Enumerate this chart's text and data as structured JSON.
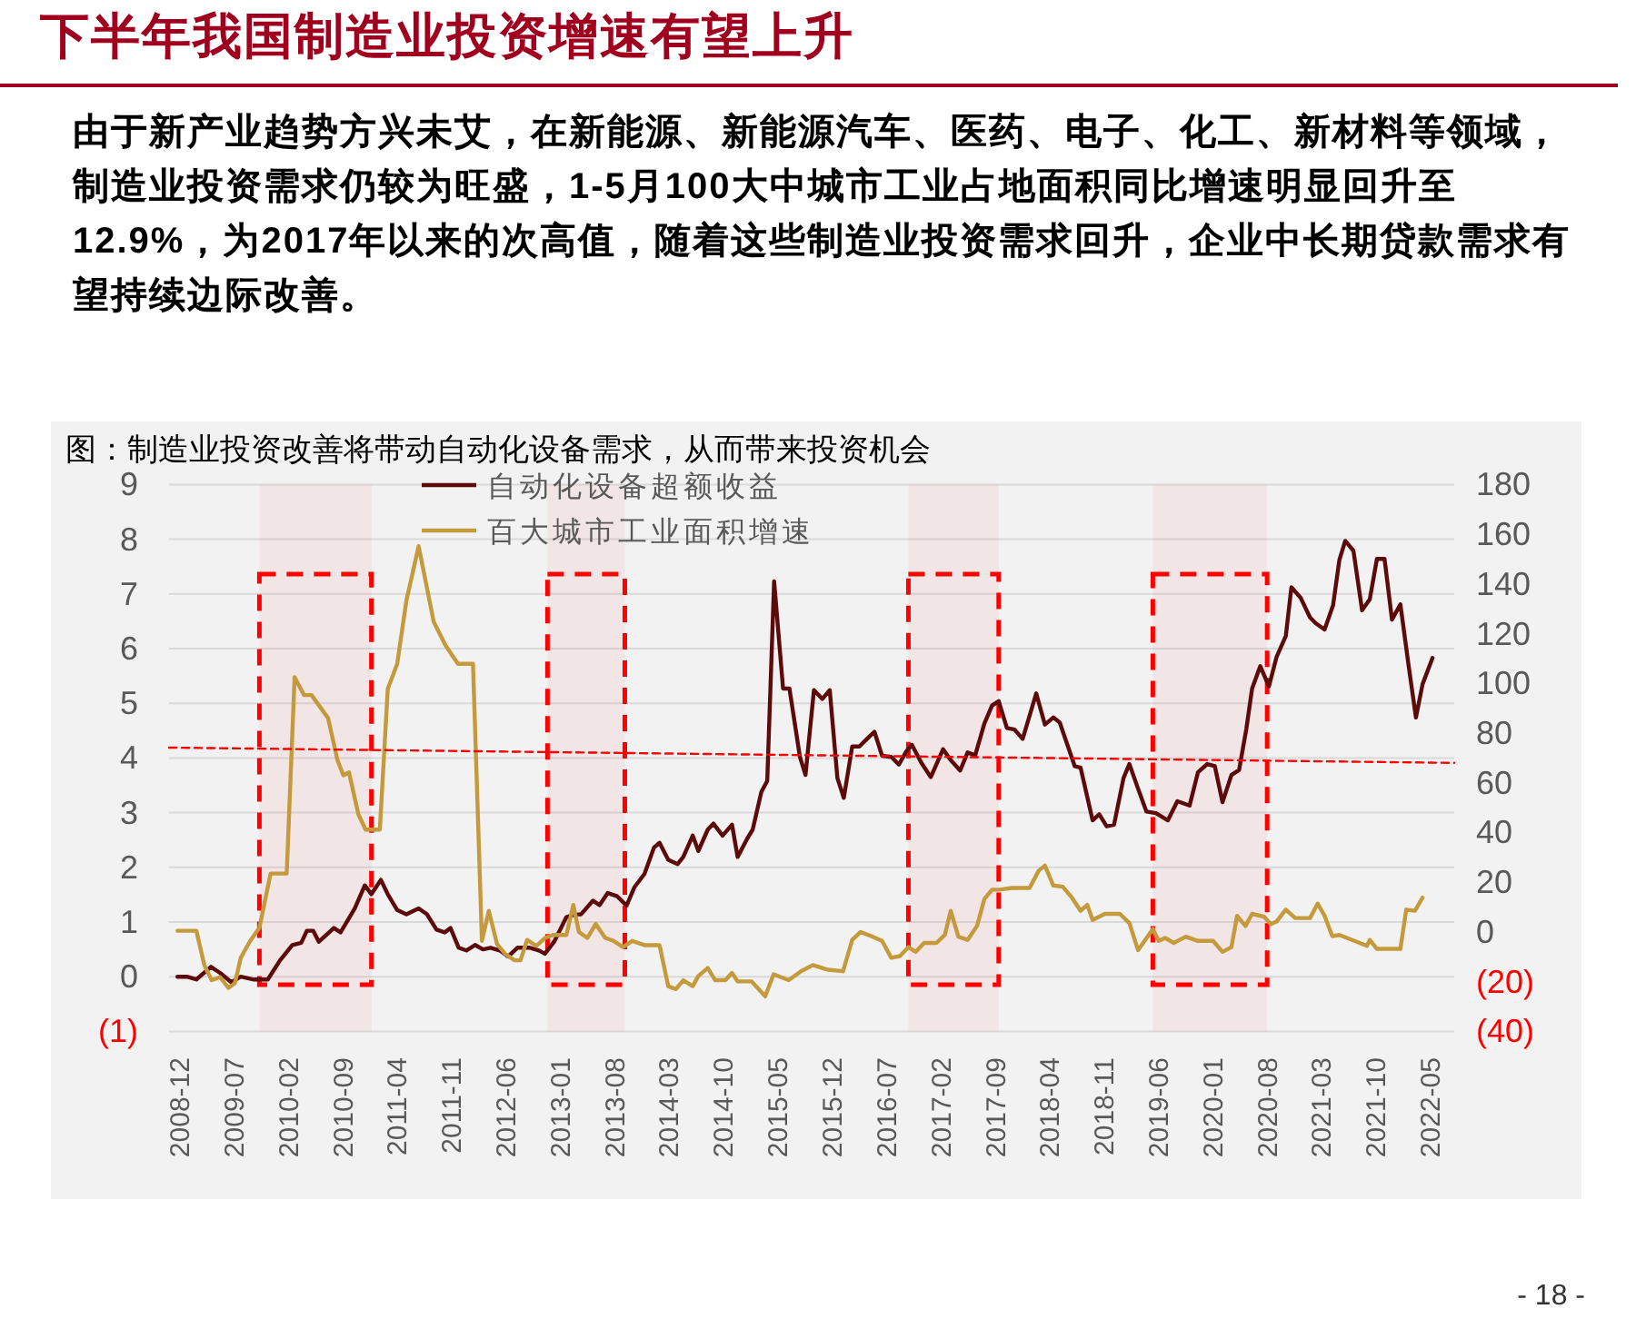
{
  "chart_data": {
    "type": "line",
    "title": "下半年我国制造业投资增速有望上升",
    "subtitle": "由于新产业趋势方兴未艾，在新能源、新能源汽车、医药、电子、化工、新材料等领域，制造业投资需求仍较为旺盛，1-5月100大中城市工业占地面积同比增速明显回升至12.9%，为2017年以来的次高值，随着这些制造业投资需求回升，企业中长期贷款需求有望持续边际改善。",
    "annotations": [
      "图：制造业投资改善将带动自动化设备需求，从而带来投资机会",
      "- 18 -"
    ],
    "xlim": [
      "2008-10-30",
      "2022-08-14"
    ],
    "xticks": [
      "2008-12",
      "2009-07",
      "2010-02",
      "2010-09",
      "2011-04",
      "2011-11",
      "2012-06",
      "2013-01",
      "2013-08",
      "2014-03",
      "2014-10",
      "2015-05",
      "2015-12",
      "2016-07",
      "2017-02",
      "2017-09",
      "2018-04",
      "2018-11",
      "2019-06",
      "2020-01",
      "2020-08",
      "2021-03",
      "2021-10",
      "2022-05"
    ],
    "ylim": [
      -1,
      9
    ],
    "yticks": [
      {
        "value": -1,
        "label": "(1)"
      },
      0,
      1,
      2,
      3,
      4,
      5,
      6,
      7,
      8,
      9
    ],
    "y2lim": [
      -40,
      180
    ],
    "y2ticks": [
      {
        "value": -40,
        "label": "(40)"
      },
      {
        "value": -20,
        "label": "(20)"
      },
      0,
      20,
      40,
      60,
      80,
      100,
      120,
      140,
      160,
      180
    ],
    "grid": "y",
    "legend": "top",
    "series": [
      {
        "name": "自动化设备超额收益",
        "color": "#5c0a0a",
        "x": [
          "2008-12-02",
          "2009-01-08",
          "2009-02-14",
          "2009-04-12",
          "2009-05-18",
          "2009-07-01",
          "2009-08-07",
          "2009-09-24",
          "2009-11-21",
          "2010-01-08",
          "2010-02-25",
          "2010-04-01",
          "2010-04-23",
          "2010-05-18",
          "2010-06-09",
          "2010-08-07",
          "2010-09-02",
          "2010-10-28",
          "2010-12-06",
          "2011-01-01",
          "2011-02-07",
          "2011-03-06",
          "2011-04-12",
          "2011-05-18",
          "2011-07-05",
          "2011-08-07",
          "2011-09-13",
          "2011-10-15",
          "2011-11-07",
          "2011-12-09",
          "2012-01-08",
          "2012-02-11",
          "2012-03-13",
          "2012-04-12",
          "2012-05-18",
          "2012-06-20",
          "2012-07-26",
          "2012-09-13",
          "2012-10-19",
          "2012-11-11",
          "2012-12-17",
          "2013-02-03",
          "2013-03-09",
          "2013-04-01",
          "2013-05-18",
          "2013-06-13",
          "2013-07-15",
          "2013-08-21",
          "2013-09-27",
          "2013-10-28",
          "2013-12-06",
          "2014-01-12",
          "2014-02-03",
          "2014-03-09",
          "2014-04-15",
          "2014-05-07",
          "2014-06-13",
          "2014-07-05",
          "2014-08-11",
          "2014-09-02",
          "2014-10-08",
          "2014-11-14",
          "2014-12-06",
          "2015-01-12",
          "2015-02-03",
          "2015-03-09",
          "2015-04-01",
          "2015-04-28",
          "2015-06-02",
          "2015-06-27",
          "2015-08-07",
          "2015-08-29",
          "2015-10-01",
          "2015-11-03",
          "2015-12-02",
          "2016-01-01",
          "2016-01-26",
          "2016-02-28",
          "2016-03-27",
          "2016-04-26",
          "2016-05-25",
          "2016-06-24",
          "2016-07-30",
          "2016-08-29",
          "2016-09-27",
          "2016-10-19",
          "2016-11-25",
          "2017-01-01",
          "2017-02-18",
          "2017-03-20",
          "2017-04-26",
          "2017-05-25",
          "2017-06-24",
          "2017-07-30",
          "2017-08-29",
          "2017-09-24",
          "2017-10-26",
          "2017-11-25",
          "2017-12-27",
          "2018-02-18",
          "2018-03-24",
          "2018-04-26",
          "2018-05-21",
          "2018-07-19",
          "2018-08-11",
          "2018-09-27",
          "2018-10-23",
          "2018-11-21",
          "2018-12-20",
          "2019-01-26",
          "2019-02-18",
          "2019-03-24",
          "2019-04-26",
          "2019-06-02",
          "2019-07-19",
          "2019-08-25",
          "2019-10-12",
          "2019-11-14",
          "2019-12-20",
          "2020-01-19",
          "2020-02-18",
          "2020-03-24",
          "2020-04-23",
          "2020-05-21",
          "2020-06-13",
          "2020-07-15",
          "2020-08-18",
          "2020-09-17",
          "2020-10-23",
          "2020-11-14",
          "2020-12-20",
          "2021-01-26",
          "2021-02-18",
          "2021-03-24",
          "2021-04-26",
          "2021-05-21",
          "2021-06-13",
          "2021-07-15",
          "2021-08-18",
          "2021-09-17",
          "2021-10-15",
          "2021-11-14",
          "2021-12-13",
          "2022-01-15",
          "2022-02-18",
          "2022-03-17",
          "2022-04-12",
          "2022-05-21"
        ],
        "values": [
          0.0,
          0.0,
          -0.05,
          0.18,
          0.07,
          -0.1,
          0.0,
          -0.05,
          -0.05,
          0.3,
          0.58,
          0.62,
          0.84,
          0.84,
          0.64,
          0.89,
          0.81,
          1.25,
          1.67,
          1.51,
          1.77,
          1.51,
          1.22,
          1.14,
          1.25,
          1.14,
          0.86,
          0.81,
          0.89,
          0.53,
          0.48,
          0.58,
          0.5,
          0.53,
          0.48,
          0.37,
          0.53,
          0.53,
          0.48,
          0.42,
          0.64,
          1.09,
          1.14,
          1.14,
          1.39,
          1.31,
          1.53,
          1.47,
          1.3,
          1.64,
          1.88,
          2.36,
          2.45,
          2.14,
          2.06,
          2.19,
          2.58,
          2.3,
          2.69,
          2.8,
          2.58,
          2.78,
          2.19,
          2.52,
          2.69,
          3.38,
          3.58,
          7.23,
          5.27,
          5.27,
          4.02,
          3.69,
          5.24,
          5.08,
          5.24,
          3.63,
          3.27,
          4.21,
          4.21,
          4.35,
          4.48,
          4.04,
          4.02,
          3.88,
          4.12,
          4.24,
          3.91,
          3.65,
          4.16,
          3.96,
          3.77,
          4.1,
          4.05,
          4.63,
          4.96,
          5.04,
          4.55,
          4.52,
          4.35,
          5.18,
          4.61,
          4.74,
          4.65,
          3.85,
          3.82,
          2.86,
          2.97,
          2.75,
          2.78,
          3.63,
          3.89,
          3.44,
          3.02,
          2.99,
          2.86,
          3.21,
          3.13,
          3.74,
          3.89,
          3.85,
          3.19,
          3.69,
          3.78,
          4.52,
          5.27,
          5.68,
          5.31,
          5.85,
          6.23,
          7.12,
          6.93,
          6.57,
          6.46,
          6.35,
          6.79,
          7.62,
          7.97,
          7.79,
          6.7,
          6.9,
          7.64,
          7.64,
          6.53,
          6.81,
          5.63,
          4.74,
          5.35,
          5.83
        ]
      },
      {
        "name": "百大城市工业面积增速",
        "color": "#c49a3c",
        "axis": "y2",
        "x": [
          "2008-12-02",
          "2009-02-14",
          "2009-03-17",
          "2009-04-15",
          "2009-05-18",
          "2009-06-20",
          "2009-07-15",
          "2009-08-07",
          "2009-09-13",
          "2009-10-19",
          "2009-12-02",
          "2010-02-03",
          "2010-03-06",
          "2010-04-12",
          "2010-05-11",
          "2010-07-15",
          "2010-08-21",
          "2010-09-13",
          "2010-10-05",
          "2010-11-11",
          "2010-12-09",
          "2011-02-03",
          "2011-03-06",
          "2011-04-12",
          "2011-05-18",
          "2011-07-05",
          "2011-09-02",
          "2011-10-19",
          "2011-12-06",
          "2012-02-03",
          "2012-03-09",
          "2012-04-05",
          "2012-05-07",
          "2012-06-09",
          "2012-07-15",
          "2012-08-07",
          "2012-09-02",
          "2012-10-08",
          "2012-11-11",
          "2012-12-13",
          "2013-02-03",
          "2013-03-02",
          "2013-03-24",
          "2013-04-26",
          "2013-05-29",
          "2013-07-05",
          "2013-08-07",
          "2013-09-13",
          "2013-10-19",
          "2013-12-06",
          "2014-02-03",
          "2014-03-09",
          "2014-04-08",
          "2014-05-07",
          "2014-06-13",
          "2014-07-05",
          "2014-08-11",
          "2014-09-09",
          "2014-10-19",
          "2014-11-14",
          "2014-12-06",
          "2015-01-30",
          "2015-03-24",
          "2015-04-26",
          "2015-06-24",
          "2015-08-11",
          "2015-09-27",
          "2015-11-25",
          "2016-01-23",
          "2016-02-28",
          "2016-04-01",
          "2016-05-18",
          "2016-06-24",
          "2016-07-30",
          "2016-09-02",
          "2016-10-05",
          "2016-11-03",
          "2016-12-06",
          "2017-01-23",
          "2017-02-25",
          "2017-03-20",
          "2017-04-19",
          "2017-05-25",
          "2017-07-01",
          "2017-07-30",
          "2017-08-29",
          "2017-09-27",
          "2017-11-14",
          "2018-01-23",
          "2018-02-28",
          "2018-03-24",
          "2018-04-26",
          "2018-06-02",
          "2018-07-08",
          "2018-08-11",
          "2018-09-06",
          "2018-09-27",
          "2018-11-14",
          "2019-01-12",
          "2019-02-18",
          "2019-03-24",
          "2019-05-21",
          "2019-06-13",
          "2019-07-08",
          "2019-08-11",
          "2019-09-27",
          "2019-11-14",
          "2020-01-12",
          "2020-02-18",
          "2020-03-24",
          "2020-04-15",
          "2020-05-18",
          "2020-06-13",
          "2020-07-30",
          "2020-08-25",
          "2020-09-17",
          "2020-10-23",
          "2020-11-29",
          "2021-01-26",
          "2021-02-25",
          "2021-03-24",
          "2021-04-23",
          "2021-05-21",
          "2021-07-19",
          "2021-09-06",
          "2021-09-17",
          "2021-10-15",
          "2022-01-15",
          "2022-02-07",
          "2022-03-13",
          "2022-04-12"
        ],
        "values": [
          0.5,
          0.5,
          -13.3,
          -19.4,
          -18.2,
          -22.5,
          -20.6,
          -10.4,
          -3.6,
          1.7,
          23.5,
          23.5,
          102.5,
          95.3,
          95.3,
          86.1,
          69.1,
          63.0,
          64.2,
          47.3,
          41.2,
          41.2,
          97.7,
          107.9,
          133.3,
          155.2,
          124.8,
          115.2,
          107.9,
          107.9,
          -3.6,
          8.5,
          -4.8,
          -8.9,
          -11.4,
          -11.4,
          -3.2,
          -5.6,
          -2.4,
          -1.2,
          -1.2,
          10.9,
          0.0,
          -2.4,
          3.2,
          -2.4,
          -3.6,
          -6.1,
          -3.6,
          -5.3,
          -5.3,
          -21.8,
          -23.0,
          -19.4,
          -21.8,
          -17.7,
          -14.5,
          -19.4,
          -19.4,
          -16.5,
          -19.9,
          -19.9,
          -25.9,
          -17.0,
          -19.4,
          -15.8,
          -13.3,
          -15.2,
          -15.8,
          -3.2,
          0.0,
          -1.9,
          -3.6,
          -10.4,
          -9.7,
          -6.1,
          -8.0,
          -4.4,
          -4.4,
          -1.2,
          8.5,
          -1.9,
          -3.2,
          2.4,
          13.3,
          17.0,
          17.0,
          17.7,
          17.7,
          24.7,
          26.7,
          18.7,
          18.2,
          13.8,
          8.5,
          10.9,
          4.8,
          7.3,
          7.3,
          3.6,
          -7.3,
          1.2,
          -3.6,
          -2.4,
          -4.4,
          -1.9,
          -3.6,
          -3.6,
          -8.0,
          -6.1,
          6.5,
          2.4,
          7.3,
          6.1,
          3.2,
          4.2,
          9.0,
          5.6,
          5.6,
          11.4,
          6.5,
          -1.7,
          -1.2,
          -3.6,
          -5.6,
          -3.2,
          -6.8,
          -6.8,
          9.0,
          8.5,
          13.8
        ]
      },
      {
        "type": "line",
        "color": "#ff0000",
        "line_style": "dashed",
        "x": [
          "2008-10-30",
          "2022-08-14"
        ],
        "values": [
          4.19,
          3.91
        ]
      }
    ],
    "bands": [
      {
        "axis": "x",
        "from": "2009-10-19",
        "to": "2011-01-01",
        "color": "#ff0000"
      },
      {
        "axis": "x",
        "from": "2012-11-21",
        "to": "2013-09-20",
        "color": "#ff0000"
      },
      {
        "axis": "x",
        "from": "2016-10-05",
        "to": "2017-09-24",
        "color": "#ff0000"
      },
      {
        "axis": "x",
        "from": "2019-05-21",
        "to": "2020-08-11",
        "color": "#ff0000"
      }
    ]
  }
}
